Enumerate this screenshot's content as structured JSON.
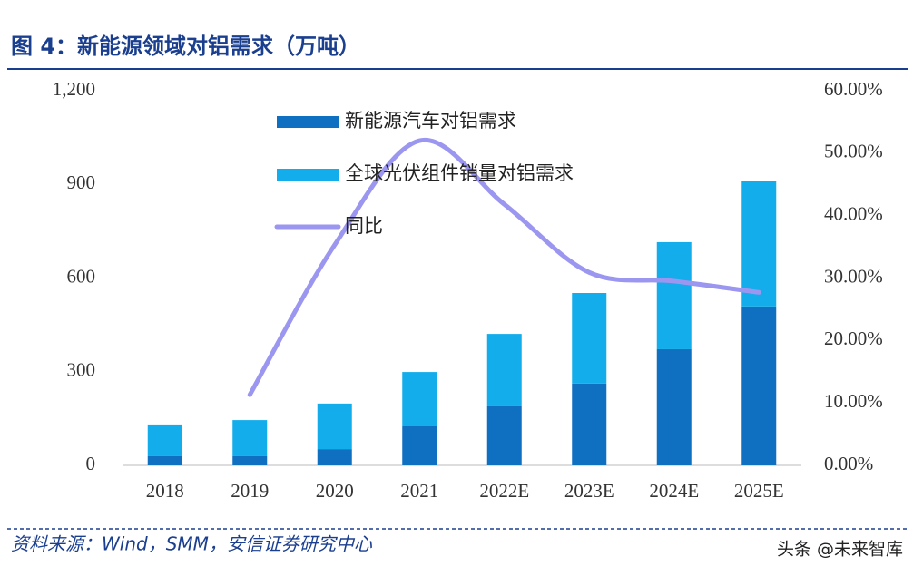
{
  "chart_data": {
    "type": "bar",
    "title": "图 4：新能源领域对铝需求（万吨）",
    "categories": [
      "2018",
      "2019",
      "2020",
      "2021",
      "2022E",
      "2023E",
      "2024E",
      "2025E"
    ],
    "stacked": true,
    "series": [
      {
        "name": "新能源汽车对铝需求",
        "color": "#0f6fc1",
        "type": "bar",
        "values": [
          30,
          30,
          52,
          125,
          189,
          262,
          372,
          509
        ]
      },
      {
        "name": "全球光伏组件销量对铝需求",
        "color": "#12adea",
        "type": "bar",
        "values": [
          101,
          115,
          146,
          174,
          232,
          290,
          343,
          401
        ]
      },
      {
        "name": "同比",
        "color": "#9b96f0",
        "type": "line",
        "axis": "y2",
        "values": [
          null,
          11.3,
          35.3,
          52,
          41.8,
          30.9,
          29.5,
          27.7
        ]
      }
    ],
    "ylim": [
      0,
      1200
    ],
    "yticks": [
      0,
      300,
      600,
      900,
      {
        "value": 1200,
        "label": "1,200"
      }
    ],
    "y2lim": [
      0,
      60
    ],
    "y2ticks": [
      {
        "value": 0,
        "label": "0.00%"
      },
      {
        "value": 10,
        "label": "10.00%"
      },
      {
        "value": 20,
        "label": "20.00%"
      },
      {
        "value": 30,
        "label": "30.00%"
      },
      {
        "value": 40,
        "label": "40.00%"
      },
      {
        "value": 50,
        "label": "50.00%"
      },
      {
        "value": 60,
        "label": "60.00%"
      }
    ],
    "legend": "top-left",
    "source": "资料来源：Wind，SMM，安信证券研究中心",
    "watermark": "头条 @未来智库"
  }
}
